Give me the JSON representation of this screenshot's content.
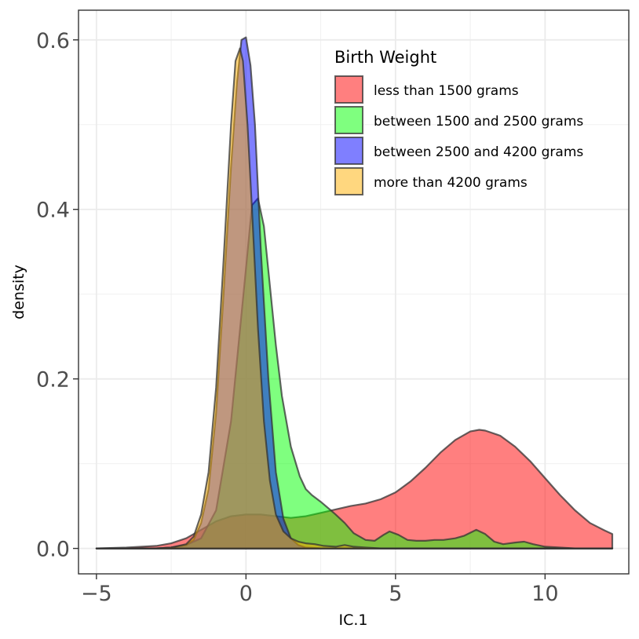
{
  "chart_data": {
    "type": "area",
    "subtype": "density",
    "title": "",
    "xlabel": "IC.1",
    "ylabel": "density",
    "xlim": [
      -5.6,
      12.8
    ],
    "ylim": [
      -0.03,
      0.635
    ],
    "x_ticks": [
      {
        "value": -5,
        "label": "−5"
      },
      {
        "value": 0,
        "label": "0"
      },
      {
        "value": 5,
        "label": "5"
      },
      {
        "value": 10,
        "label": "10"
      }
    ],
    "y_ticks": [
      {
        "value": 0.0,
        "label": "0.0"
      },
      {
        "value": 0.2,
        "label": "0.2"
      },
      {
        "value": 0.4,
        "label": "0.4"
      },
      {
        "value": 0.6,
        "label": "0.6"
      }
    ],
    "grid": true,
    "legend": {
      "title": "Birth Weight",
      "position": "top-right"
    },
    "series": [
      {
        "name": "less than 1500 grams",
        "color": "#FF0000",
        "x": [
          -5,
          -4,
          -3,
          -2.5,
          -2,
          -1.5,
          -1,
          -0.5,
          0,
          0.5,
          1,
          1.5,
          2,
          2.5,
          3,
          3.5,
          4,
          4.5,
          5,
          5.5,
          6,
          6.5,
          7,
          7.5,
          7.8,
          8,
          8.5,
          9,
          9.5,
          10,
          10.5,
          11,
          11.5,
          12,
          12.25
        ],
        "y": [
          0,
          0.001,
          0.003,
          0.006,
          0.012,
          0.022,
          0.032,
          0.038,
          0.04,
          0.04,
          0.038,
          0.036,
          0.038,
          0.042,
          0.046,
          0.05,
          0.053,
          0.058,
          0.066,
          0.079,
          0.095,
          0.113,
          0.128,
          0.138,
          0.14,
          0.139,
          0.133,
          0.12,
          0.103,
          0.083,
          0.063,
          0.045,
          0.03,
          0.021,
          0.017
        ]
      },
      {
        "name": "between 1500 and 2500 grams",
        "color": "#00FF00",
        "x": [
          -5,
          -3,
          -2.5,
          -2,
          -1.5,
          -1,
          -0.5,
          0,
          0.2,
          0.4,
          0.6,
          0.8,
          1,
          1.2,
          1.5,
          1.8,
          2,
          2.2,
          2.5,
          2.8,
          3,
          3.3,
          3.6,
          4,
          4.3,
          4.6,
          4.8,
          5.1,
          5.4,
          5.7,
          6,
          6.3,
          6.6,
          7,
          7.3,
          7.7,
          8,
          8.3,
          8.6,
          9,
          9.3,
          9.6,
          10,
          10.5,
          11,
          12.25
        ],
        "y": [
          0,
          0,
          0.001,
          0.004,
          0.012,
          0.045,
          0.15,
          0.33,
          0.405,
          0.413,
          0.38,
          0.31,
          0.24,
          0.18,
          0.12,
          0.085,
          0.07,
          0.063,
          0.055,
          0.046,
          0.04,
          0.03,
          0.018,
          0.01,
          0.009,
          0.016,
          0.02,
          0.016,
          0.01,
          0.009,
          0.009,
          0.01,
          0.01,
          0.012,
          0.015,
          0.022,
          0.017,
          0.008,
          0.005,
          0.007,
          0.008,
          0.005,
          0.002,
          0.001,
          0,
          0
        ]
      },
      {
        "name": "between 2500 and 4200 grams",
        "color": "#0000FF",
        "x": [
          -5,
          -3,
          -2.5,
          -2,
          -1.75,
          -1.5,
          -1.25,
          -1,
          -0.75,
          -0.5,
          -0.3,
          -0.15,
          0,
          0.15,
          0.3,
          0.5,
          0.75,
          1,
          1.25,
          1.5,
          1.75,
          2,
          2.5,
          3,
          12.25
        ],
        "y": [
          0,
          0,
          0.001,
          0.004,
          0.01,
          0.03,
          0.07,
          0.16,
          0.3,
          0.45,
          0.55,
          0.6,
          0.603,
          0.57,
          0.5,
          0.35,
          0.2,
          0.09,
          0.035,
          0.012,
          0.004,
          0.001,
          0,
          0,
          0
        ]
      },
      {
        "name": "more than 4200 grams",
        "color": "#FFB000",
        "x": [
          -5,
          -3,
          -2.5,
          -2,
          -1.75,
          -1.5,
          -1.25,
          -1,
          -0.75,
          -0.5,
          -0.35,
          -0.2,
          -0.1,
          0.05,
          0.2,
          0.4,
          0.6,
          0.8,
          1,
          1.25,
          1.5,
          1.75,
          2,
          2.3,
          2.6,
          3,
          3.3,
          3.6,
          4,
          4.5,
          12.25
        ],
        "y": [
          0,
          0,
          0.001,
          0.005,
          0.014,
          0.04,
          0.09,
          0.19,
          0.34,
          0.5,
          0.575,
          0.59,
          0.575,
          0.5,
          0.4,
          0.26,
          0.15,
          0.08,
          0.04,
          0.02,
          0.012,
          0.008,
          0.006,
          0.005,
          0.003,
          0.002,
          0.004,
          0.002,
          0.001,
          0,
          0
        ]
      }
    ]
  }
}
